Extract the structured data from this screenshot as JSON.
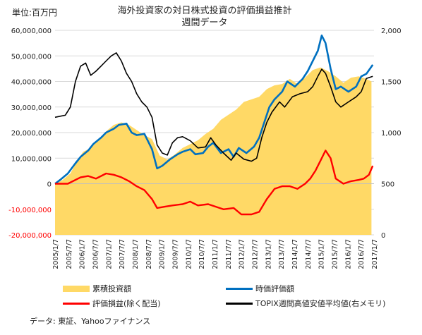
{
  "unit_label": "単位:百万円",
  "title_line1": "海外投資家の対日株式投資の評価損益推計",
  "title_line2": "週間データ",
  "source": "データ: 東証、Yahooファイナンス",
  "colors": {
    "cumulative": "#FFD966",
    "market_value": "#0070C0",
    "pnl": "#FF0000",
    "topix": "#000000",
    "grid": "#D9D9D9"
  },
  "chart_data": {
    "type": "line",
    "title": "海外投資家の対日株式投資の評価損益推計 週間データ",
    "x_ticks": [
      "2005/1/7",
      "2005/7/7",
      "2006/1/7",
      "2006/7/7",
      "2007/1/7",
      "2007/7/7",
      "2008/1/7",
      "2008/7/7",
      "2009/1/7",
      "2009/7/7",
      "2010/1/7",
      "2010/7/7",
      "2011/1/7",
      "2011/7/7",
      "2012/1/7",
      "2012/7/7",
      "2013/1/7",
      "2013/7/7",
      "2014/1/7",
      "2014/7/7",
      "2015/1/7",
      "2015/7/7",
      "2016/1/7",
      "2016/7/7",
      "2017/1/7"
    ],
    "y_left_ticks": [
      "60,000,000",
      "50,000,000",
      "40,000,000",
      "30,000,000",
      "20,000,000",
      "10,000,000",
      "0",
      "-10,000,000",
      "-20,000,000"
    ],
    "y_left_range": [
      -20000000,
      60000000
    ],
    "y_right_ticks": [
      "2,000",
      "1,500",
      "1,000",
      "500",
      "0"
    ],
    "y_right_range": [
      0,
      2000
    ],
    "x_range": [
      2005.0,
      2017.5
    ],
    "legend_position": "bottom",
    "series": [
      {
        "name": "累積投資額",
        "axis": "left",
        "kind": "area",
        "x": [
          2005.0,
          2005.3,
          2005.6,
          2005.9,
          2006.1,
          2006.4,
          2006.7,
          2007.0,
          2007.3,
          2007.6,
          2007.9,
          2008.2,
          2008.5,
          2008.8,
          2009.1,
          2009.4,
          2009.7,
          2010.0,
          2010.3,
          2010.6,
          2010.9,
          2011.2,
          2011.5,
          2011.8,
          2012.1,
          2012.4,
          2012.7,
          2013.0,
          2013.3,
          2013.6,
          2013.9,
          2014.2,
          2014.5,
          2014.8,
          2015.1,
          2015.4,
          2015.7,
          2016.0,
          2016.3,
          2016.6,
          2016.9,
          2017.2,
          2017.4
        ],
        "y": [
          0,
          1500000,
          4000000,
          9500000,
          12500000,
          14000000,
          17000000,
          20500000,
          23000000,
          24000000,
          23000000,
          21000000,
          19000000,
          17500000,
          11000000,
          9500000,
          11500000,
          14000000,
          15500000,
          17000000,
          19500000,
          21500000,
          25000000,
          27000000,
          29000000,
          32000000,
          33000000,
          34000000,
          37000000,
          38500000,
          39000000,
          41000000,
          39000000,
          41500000,
          44500000,
          45500000,
          44000000,
          42000000,
          39500000,
          41500000,
          42000000,
          41000000,
          40000000
        ]
      },
      {
        "name": "時価評価額",
        "axis": "left",
        "kind": "line",
        "x": [
          2005.0,
          2005.2,
          2005.5,
          2005.8,
          2006.0,
          2006.3,
          2006.5,
          2006.8,
          2007.0,
          2007.3,
          2007.5,
          2007.8,
          2008.0,
          2008.2,
          2008.5,
          2008.8,
          2009.0,
          2009.2,
          2009.5,
          2009.8,
          2010.0,
          2010.3,
          2010.5,
          2010.8,
          2011.0,
          2011.2,
          2011.5,
          2011.8,
          2012.0,
          2012.2,
          2012.5,
          2012.8,
          2013.0,
          2013.2,
          2013.4,
          2013.6,
          2013.9,
          2014.1,
          2014.4,
          2014.7,
          2014.9,
          2015.1,
          2015.3,
          2015.45,
          2015.6,
          2015.8,
          2016.0,
          2016.2,
          2016.5,
          2016.8,
          2017.0,
          2017.2,
          2017.45
        ],
        "y": [
          0,
          1500000,
          4000000,
          8000000,
          10500000,
          13000000,
          15500000,
          18000000,
          20000000,
          21500000,
          23000000,
          23500000,
          20000000,
          19000000,
          19500000,
          13500000,
          6000000,
          7000000,
          9500000,
          11500000,
          12500000,
          13500000,
          11500000,
          12000000,
          14500000,
          16000000,
          12000000,
          13500000,
          10500000,
          14000000,
          12000000,
          14500000,
          18000000,
          24000000,
          30000000,
          33000000,
          36000000,
          40000000,
          38000000,
          41000000,
          44000000,
          48000000,
          52000000,
          58000000,
          55000000,
          45000000,
          37000000,
          38000000,
          36000000,
          38000000,
          42000000,
          43000000,
          46500000
        ]
      },
      {
        "name": "評価損益(除く配当)",
        "axis": "left",
        "kind": "line",
        "x": [
          2005.0,
          2005.5,
          2006.0,
          2006.3,
          2006.6,
          2007.0,
          2007.3,
          2007.6,
          2007.9,
          2008.2,
          2008.5,
          2008.8,
          2009.0,
          2009.3,
          2009.6,
          2010.0,
          2010.3,
          2010.6,
          2011.0,
          2011.3,
          2011.6,
          2012.0,
          2012.3,
          2012.7,
          2013.0,
          2013.3,
          2013.6,
          2013.9,
          2014.2,
          2014.5,
          2014.8,
          2015.0,
          2015.2,
          2015.4,
          2015.6,
          2015.8,
          2016.0,
          2016.3,
          2016.6,
          2016.9,
          2017.1,
          2017.3,
          2017.45
        ],
        "y": [
          0,
          0,
          2500000,
          3000000,
          2000000,
          4000000,
          3500000,
          2500000,
          1000000,
          -1000000,
          -2500000,
          -6000000,
          -9500000,
          -9000000,
          -8500000,
          -8000000,
          -7000000,
          -8500000,
          -8000000,
          -9000000,
          -10000000,
          -9500000,
          -12000000,
          -12000000,
          -11000000,
          -6000000,
          -2000000,
          -1000000,
          -1000000,
          -2000000,
          0,
          2000000,
          5000000,
          9000000,
          13000000,
          10000000,
          2000000,
          0,
          1000000,
          1500000,
          2000000,
          3500000,
          7000000
        ]
      },
      {
        "name": "TOPIX週間高値安値平均値(右メモリ)",
        "axis": "right",
        "kind": "line",
        "x": [
          2005.0,
          2005.2,
          2005.4,
          2005.6,
          2005.8,
          2006.0,
          2006.2,
          2006.4,
          2006.6,
          2006.8,
          2007.0,
          2007.2,
          2007.4,
          2007.6,
          2007.8,
          2008.0,
          2008.2,
          2008.4,
          2008.6,
          2008.8,
          2009.0,
          2009.2,
          2009.4,
          2009.6,
          2009.8,
          2010.0,
          2010.3,
          2010.6,
          2010.9,
          2011.1,
          2011.3,
          2011.6,
          2011.9,
          2012.1,
          2012.4,
          2012.7,
          2012.9,
          2013.1,
          2013.3,
          2013.5,
          2013.8,
          2014.0,
          2014.3,
          2014.6,
          2014.9,
          2015.1,
          2015.3,
          2015.45,
          2015.6,
          2015.8,
          2016.0,
          2016.2,
          2016.5,
          2016.8,
          2017.0,
          2017.2,
          2017.45
        ],
        "y": [
          1150,
          1160,
          1170,
          1250,
          1500,
          1650,
          1680,
          1560,
          1600,
          1650,
          1700,
          1750,
          1780,
          1700,
          1580,
          1500,
          1380,
          1300,
          1250,
          1150,
          880,
          800,
          780,
          900,
          950,
          960,
          920,
          850,
          860,
          950,
          880,
          800,
          730,
          800,
          740,
          720,
          750,
          950,
          1100,
          1200,
          1300,
          1250,
          1350,
          1380,
          1400,
          1450,
          1550,
          1620,
          1580,
          1450,
          1300,
          1250,
          1300,
          1350,
          1400,
          1530,
          1550
        ]
      }
    ]
  }
}
